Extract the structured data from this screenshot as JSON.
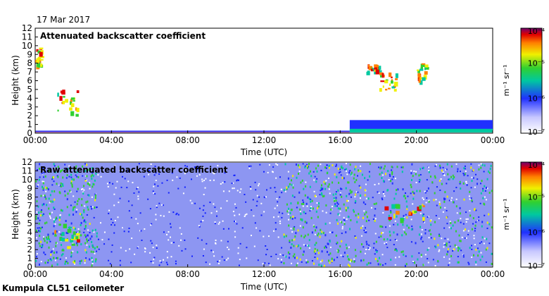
{
  "date_label": "17 Mar 2017",
  "footer": "Kumpula CL51 ceilometer",
  "colorbar_unit": "m⁻¹ sr⁻¹",
  "chart_data": [
    {
      "type": "heatmap",
      "title": "Attenuated backscatter coefficient",
      "xlabel": "Time (UTC)",
      "ylabel": "Height (km)",
      "xlim": [
        0,
        24
      ],
      "ylim": [
        0,
        12
      ],
      "x_ticks": [
        "00:00",
        "04:00",
        "08:00",
        "12:00",
        "16:00",
        "20:00",
        "00:00"
      ],
      "y_ticks": [
        "0",
        "1",
        "2",
        "3",
        "4",
        "5",
        "6",
        "7",
        "8",
        "9",
        "10",
        "11",
        "12"
      ],
      "colorbar": {
        "scale": "log",
        "ticks": [
          "10⁻⁴",
          "10⁻⁵",
          "10⁻⁶",
          "10⁻⁷"
        ],
        "range": [
          1e-07,
          0.0001
        ]
      },
      "features": [
        {
          "kind": "boundary_layer",
          "t": [
            0,
            16.5
          ],
          "top_km": 0.3
        },
        {
          "kind": "aerosol_layer",
          "t": [
            16.5,
            24
          ],
          "top_km": 1.5
        },
        {
          "kind": "cloud",
          "t": [
            0,
            0.3
          ],
          "h_km": [
            7.5,
            10.0
          ]
        },
        {
          "kind": "cloud",
          "t": [
            1.0,
            2.2
          ],
          "h_km": [
            2.0,
            5.0
          ]
        },
        {
          "kind": "cloud",
          "t": [
            17.3,
            18.0
          ],
          "h_km": [
            7.0,
            8.0
          ]
        },
        {
          "kind": "cloud",
          "t": [
            18.0,
            19.0
          ],
          "h_km": [
            5.0,
            7.0
          ]
        },
        {
          "kind": "cloud",
          "t": [
            20.0,
            20.5
          ],
          "h_km": [
            6.0,
            8.0
          ]
        }
      ]
    },
    {
      "type": "heatmap",
      "title": "Raw attenuated backscatter coefficient",
      "xlabel": "Time (UTC)",
      "ylabel": "Height (km)",
      "xlim": [
        0,
        24
      ],
      "ylim": [
        0,
        12
      ],
      "x_ticks": [
        "00:00",
        "04:00",
        "08:00",
        "12:00",
        "16:00",
        "20:00",
        "00:00"
      ],
      "y_ticks": [
        "0",
        "1",
        "2",
        "3",
        "4",
        "5",
        "6",
        "7",
        "8",
        "9",
        "10",
        "11",
        "12"
      ],
      "colorbar": {
        "scale": "log",
        "ticks": [
          "10⁻⁴",
          "10⁻⁵",
          "10⁻⁶",
          "10⁻⁷"
        ],
        "range": [
          1e-07,
          0.0001
        ]
      },
      "features": [
        {
          "kind": "noise_background",
          "t": [
            0,
            24
          ],
          "h_km": [
            0,
            12
          ]
        },
        {
          "kind": "strong_noise",
          "t": [
            0,
            3.3
          ]
        },
        {
          "kind": "strong_noise",
          "t": [
            13.0,
            17.0
          ]
        },
        {
          "kind": "strong_noise",
          "t": [
            17.0,
            24.0
          ]
        },
        {
          "kind": "cloud",
          "t": [
            1.0,
            2.2
          ],
          "h_km": [
            2.0,
            5.0
          ]
        },
        {
          "kind": "cloud",
          "t": [
            17.5,
            20.5
          ],
          "h_km": [
            5.5,
            7.5
          ]
        }
      ]
    }
  ]
}
